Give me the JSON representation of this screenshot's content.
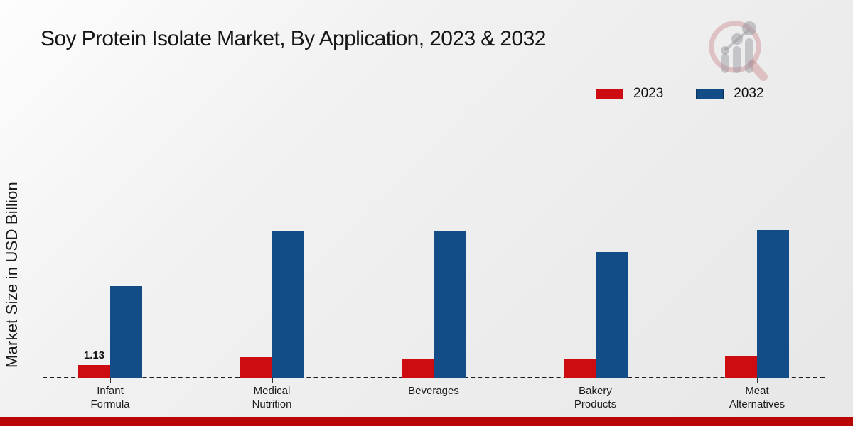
{
  "page": {
    "title": "Soy Protein Isolate Market, By Application, 2023 & 2032",
    "footer_strip_color": "#b90504",
    "background_from": "#fdfdfd",
    "background_to": "#e7e7e7"
  },
  "logo": {
    "name": "magnifier-growth-chart-watermark",
    "ring_color": "#d9a9ad",
    "glyph_color": "#b9b9c2"
  },
  "chart_data": {
    "type": "bar",
    "title": "Soy Protein Isolate Market, By Application, 2023 & 2032",
    "xlabel": "",
    "ylabel": "Market Size in USD Billion",
    "ylim": [
      0,
      14
    ],
    "grid": false,
    "axes_hidden": true,
    "baseline_style": "dashed",
    "legend_position": "top-right",
    "categories": [
      "Infant Formula",
      "Medical Nutrition",
      "Beverages",
      "Bakery Products",
      "Meat Alternatives"
    ],
    "category_label_lines": [
      [
        "Infant",
        "Formula"
      ],
      [
        "Medical",
        "Nutrition"
      ],
      [
        "Beverages"
      ],
      [
        "Bakery",
        "Products"
      ],
      [
        "Meat",
        "Alternatives"
      ]
    ],
    "series": [
      {
        "name": "2023",
        "color": "#cc0c10",
        "values": [
          1.13,
          1.8,
          1.7,
          1.65,
          1.95
        ]
      },
      {
        "name": "2032",
        "color": "#124d87",
        "values": [
          7.9,
          12.6,
          12.6,
          10.8,
          12.65
        ]
      }
    ],
    "data_labels": [
      {
        "category": "Infant Formula",
        "series": "2023",
        "text": "1.13"
      }
    ]
  }
}
